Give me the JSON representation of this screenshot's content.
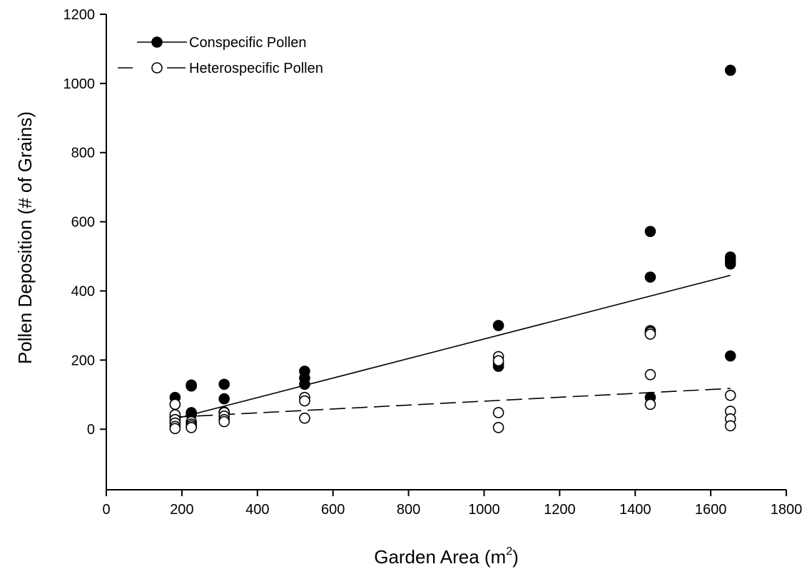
{
  "chart_data": {
    "type": "scatter",
    "xlabel": "Garden Area (m",
    "xlabel_sup": "2",
    "xlabel_end": ")",
    "ylabel": "Pollen Deposition (# of Grains)",
    "xlim": [
      0,
      1800
    ],
    "ylim": [
      -175,
      1200
    ],
    "xticks": [
      0,
      200,
      400,
      600,
      800,
      1000,
      1200,
      1400,
      1600,
      1800
    ],
    "yticks": [
      0,
      200,
      400,
      600,
      800,
      1000,
      1200
    ],
    "xtick_labels": [
      "0",
      "200",
      "400",
      "600",
      "800",
      "1000",
      "1200",
      "1400",
      "1600",
      "1800"
    ],
    "ytick_labels": [
      "0",
      "200",
      "400",
      "600",
      "800",
      "1000",
      "1200"
    ],
    "grid": false,
    "legend_position": "top-left",
    "series": [
      {
        "name": "Conspecific Pollen",
        "marker": "filled-circle",
        "line_style": "solid",
        "color": "#000000",
        "points": [
          [
            182,
            92
          ],
          [
            182,
            72
          ],
          [
            182,
            35
          ],
          [
            182,
            20
          ],
          [
            225,
            128
          ],
          [
            225,
            125
          ],
          [
            225,
            48
          ],
          [
            225,
            42
          ],
          [
            312,
            130
          ],
          [
            312,
            88
          ],
          [
            312,
            50
          ],
          [
            525,
            168
          ],
          [
            525,
            148
          ],
          [
            525,
            130
          ],
          [
            1038,
            300
          ],
          [
            1038,
            190
          ],
          [
            1038,
            182
          ],
          [
            1440,
            572
          ],
          [
            1440,
            440
          ],
          [
            1440,
            285
          ],
          [
            1440,
            92
          ],
          [
            1652,
            1038
          ],
          [
            1652,
            498
          ],
          [
            1652,
            488
          ],
          [
            1652,
            478
          ],
          [
            1652,
            212
          ]
        ],
        "trend": [
          [
            182,
            30
          ],
          [
            1652,
            445
          ]
        ]
      },
      {
        "name": "Heterospecific Pollen",
        "marker": "open-circle",
        "line_style": "dashed",
        "color": "#000000",
        "points": [
          [
            182,
            72
          ],
          [
            182,
            42
          ],
          [
            182,
            28
          ],
          [
            182,
            18
          ],
          [
            182,
            8
          ],
          [
            182,
            2
          ],
          [
            225,
            22
          ],
          [
            225,
            15
          ],
          [
            225,
            10
          ],
          [
            225,
            5
          ],
          [
            312,
            48
          ],
          [
            312,
            38
          ],
          [
            312,
            28
          ],
          [
            312,
            22
          ],
          [
            525,
            92
          ],
          [
            525,
            82
          ],
          [
            525,
            32
          ],
          [
            1038,
            210
          ],
          [
            1038,
            198
          ],
          [
            1038,
            48
          ],
          [
            1038,
            5
          ],
          [
            1440,
            280
          ],
          [
            1440,
            275
          ],
          [
            1440,
            158
          ],
          [
            1440,
            72
          ],
          [
            1652,
            98
          ],
          [
            1652,
            52
          ],
          [
            1652,
            30
          ],
          [
            1652,
            10
          ]
        ],
        "trend": [
          [
            182,
            35
          ],
          [
            1652,
            118
          ]
        ]
      }
    ]
  }
}
